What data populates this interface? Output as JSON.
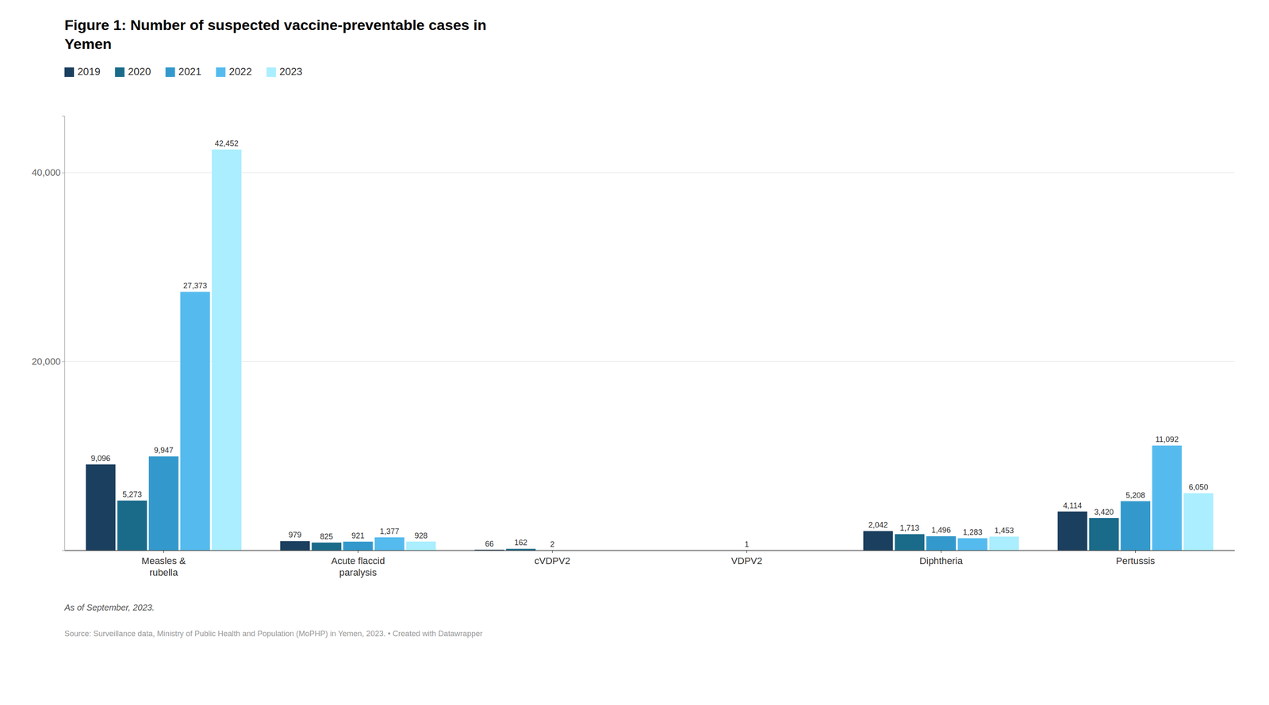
{
  "chart_data": {
    "type": "bar",
    "title": "Figure 1: Number of suspected vaccine-preventable cases in\nYemen",
    "categories": [
      "Measles &\nrubella",
      "Acute flaccid\nparalysis",
      "cVDPV2",
      "VDPV2",
      "Diphtheria",
      "Pertussis"
    ],
    "series": [
      {
        "name": "2019",
        "color": "#1b3f5e",
        "values": [
          9096,
          979,
          66,
          0,
          2042,
          4114
        ],
        "value_labels": [
          "9,096",
          "979",
          "66",
          null,
          "2,042",
          "4,114"
        ]
      },
      {
        "name": "2020",
        "color": "#1a6b8a",
        "values": [
          5273,
          825,
          162,
          0,
          1713,
          3420
        ],
        "value_labels": [
          "5,273",
          "825",
          "162",
          null,
          "1,713",
          "3,420"
        ]
      },
      {
        "name": "2021",
        "color": "#3399cc",
        "values": [
          9947,
          921,
          2,
          1,
          1496,
          5208
        ],
        "value_labels": [
          "9,947",
          "921",
          "2",
          "1",
          "1,496",
          "5,208"
        ]
      },
      {
        "name": "2022",
        "color": "#55bbee",
        "values": [
          27373,
          1377,
          0,
          0,
          1283,
          11092
        ],
        "value_labels": [
          "27,373",
          "1,377",
          null,
          null,
          "1,283",
          "11,092"
        ]
      },
      {
        "name": "2023",
        "color": "#aaeeff",
        "values": [
          42452,
          928,
          0,
          0,
          1453,
          6050
        ],
        "value_labels": [
          "42,452",
          "928",
          null,
          null,
          "1,453",
          "6,050"
        ]
      }
    ],
    "ylim": [
      0,
      46000
    ],
    "yticks": [
      {
        "value": 0,
        "label": null
      },
      {
        "value": 20000,
        "label": "20,000"
      },
      {
        "value": 40000,
        "label": "40,000"
      }
    ],
    "grid": true,
    "legend": "top-left",
    "data_labels": true,
    "annotations": [
      "As of September, 2023.",
      "Source: Surveillance data, Ministry of Public Health and Population (MoPHP) in Yemen, 2023. • Created with Datawrapper"
    ]
  }
}
